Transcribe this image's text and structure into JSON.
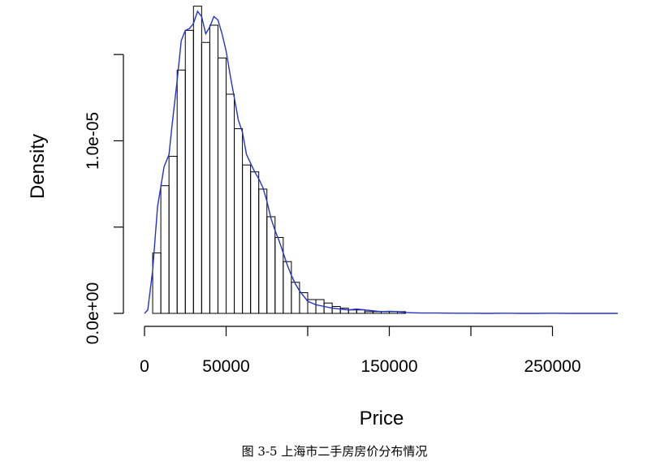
{
  "chart_data": {
    "type": "histogram",
    "xlabel": "Price",
    "ylabel": "Density",
    "x_ticks": [
      0,
      50000,
      100000,
      150000,
      200000,
      250000
    ],
    "x_tick_labels": [
      "0",
      "50000",
      "",
      "150000",
      "",
      "250000"
    ],
    "y_ticks": [
      0,
      5e-06,
      1e-05,
      1.5e-05
    ],
    "y_tick_labels": [
      "0.0e+00",
      "",
      "1.0e-05",
      ""
    ],
    "xlim": [
      0,
      300000
    ],
    "ylim": [
      0,
      1.75e-05
    ],
    "bin_width": 5000,
    "bins_start": 0,
    "densities": [
      0,
      3.5e-06,
      7.4e-06,
      9.1e-06,
      1.41e-05,
      1.64e-05,
      1.78e-05,
      1.57e-05,
      1.67e-05,
      1.48e-05,
      1.27e-05,
      1.07e-05,
      8.6e-06,
      8.2e-06,
      7.2e-06,
      5.6e-06,
      4.4e-06,
      3e-06,
      1.8e-06,
      1.2e-06,
      8e-07,
      8e-07,
      6e-07,
      4e-07,
      3e-07,
      2e-07,
      2e-07,
      1e-07,
      1e-07,
      1e-07,
      1e-07,
      1e-07
    ],
    "density_curve": {
      "color": "#2233cc",
      "x": [
        0,
        2000,
        5000,
        8000,
        12000,
        15000,
        17000,
        20000,
        22500,
        25000,
        27500,
        30000,
        32500,
        35000,
        37500,
        40000,
        42500,
        45000,
        47500,
        50000,
        52500,
        55000,
        57500,
        60000,
        62500,
        65000,
        67500,
        70000,
        72500,
        75000,
        77500,
        80000,
        82500,
        85000,
        87500,
        90000,
        92500,
        95000,
        97500,
        100000,
        105000,
        110000,
        115000,
        120000,
        125000,
        130000,
        135000,
        140000,
        145000,
        150000,
        155000,
        160000,
        165000,
        170000,
        180000,
        190000,
        200000,
        210000,
        220000,
        230000,
        240000,
        250000,
        260000,
        270000,
        280000,
        290000
      ],
      "y": [
        0,
        2e-07,
        2.5e-06,
        6.2e-06,
        8.5e-06,
        9.2e-06,
        1.1e-05,
        1.35e-05,
        1.58e-05,
        1.64e-05,
        1.65e-05,
        1.68e-05,
        1.75e-05,
        1.72e-05,
        1.62e-05,
        1.66e-05,
        1.72e-05,
        1.7e-05,
        1.62e-05,
        1.52e-05,
        1.38e-05,
        1.25e-05,
        1.12e-05,
        1.05e-05,
        9.2e-06,
        8.7e-06,
        8.2e-06,
        7.8e-06,
        7.3e-06,
        6.5e-06,
        5.5e-06,
        4.8e-06,
        4.2e-06,
        3.5e-06,
        2.8e-06,
        2.2e-06,
        1.7e-06,
        1.3e-06,
        1e-06,
        7e-07,
        5e-07,
        4e-07,
        3e-07,
        2.5e-07,
        2e-07,
        2.5e-07,
        2e-07,
        1.5e-07,
        1e-07,
        1.2e-07,
        1e-07,
        5e-08,
        3e-08,
        2e-08,
        2e-08,
        1e-08,
        1e-08,
        0,
        1e-08,
        0,
        0,
        1e-08,
        0,
        0,
        0,
        0
      ]
    },
    "grid": false
  },
  "caption": "图 3-5 上海市二手房房价分布情况"
}
